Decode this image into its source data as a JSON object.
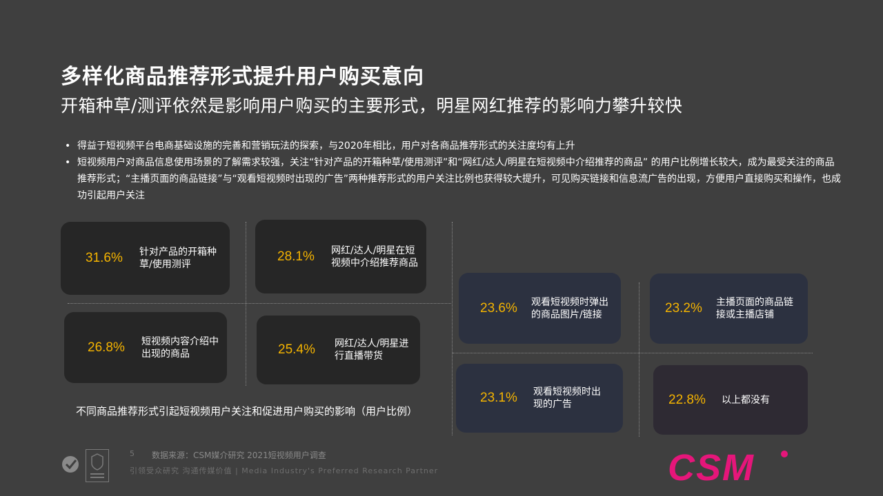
{
  "title": "多样化商品推荐形式提升用户购买意向",
  "subtitle": "开箱种草/测评依然是影响用户购买的主要形式，明星网红推荐的影响力攀升较快",
  "bullets": [
    "得益于短视频平台电商基础设施的完善和营销玩法的探索，与2020年相比，用户对各商品推荐形式的关注度均有上升",
    "短视频用户对商品信息使用场景的了解需求较强，关注“针对产品的开箱种草/使用测评”和“网红/达人/明星在短视频中介绍推荐的商品” 的用户比例增长较大，成为最受关注的商品推荐形式；“主播页面的商品链接”与“观看短视频时出现的广告”两种推荐形式的用户关注比例也获得较大提升，可见购买链接和信息流广告的出现，方便用户直接购买和操作，也成功引起用户关注"
  ],
  "cards": [
    {
      "pct": "31.6%",
      "label1": "针对产品的开箱种",
      "label2": "草/使用测评"
    },
    {
      "pct": "28.1%",
      "label1": "网红/达人/明星在短",
      "label2": "视频中介绍推荐商品"
    },
    {
      "pct": "26.8%",
      "label1": "短视频内容介绍中",
      "label2": "出现的商品"
    },
    {
      "pct": "25.4%",
      "label1": "网红/达人/明星进",
      "label2": "行直播带货"
    },
    {
      "pct": "23.6%",
      "label1": "观看短视频时弹出",
      "label2": "的商品图片/链接"
    },
    {
      "pct": "23.2%",
      "label1": "主播页面的商品链",
      "label2": "接或主播店铺"
    },
    {
      "pct": "23.1%",
      "label1": "观看短视频时出",
      "label2": "现的广告"
    },
    {
      "pct": "22.8%",
      "label1": "以上都没有",
      "label2": ""
    }
  ],
  "caption": "不同商品推荐形式引起短视频用户关注和促进用户购买的影响（用户比例）",
  "page_number": "5",
  "source": "数据来源：CSM媒介研究 2021短视频用户调查",
  "tagline": "引领受众研究  沟通传媒价值 | Media Industry's Preferred Research Partner",
  "brand": "CSM",
  "colors": {
    "accent": "#f5b400",
    "brand": "#e5167a",
    "background": "#3f3f3f"
  }
}
